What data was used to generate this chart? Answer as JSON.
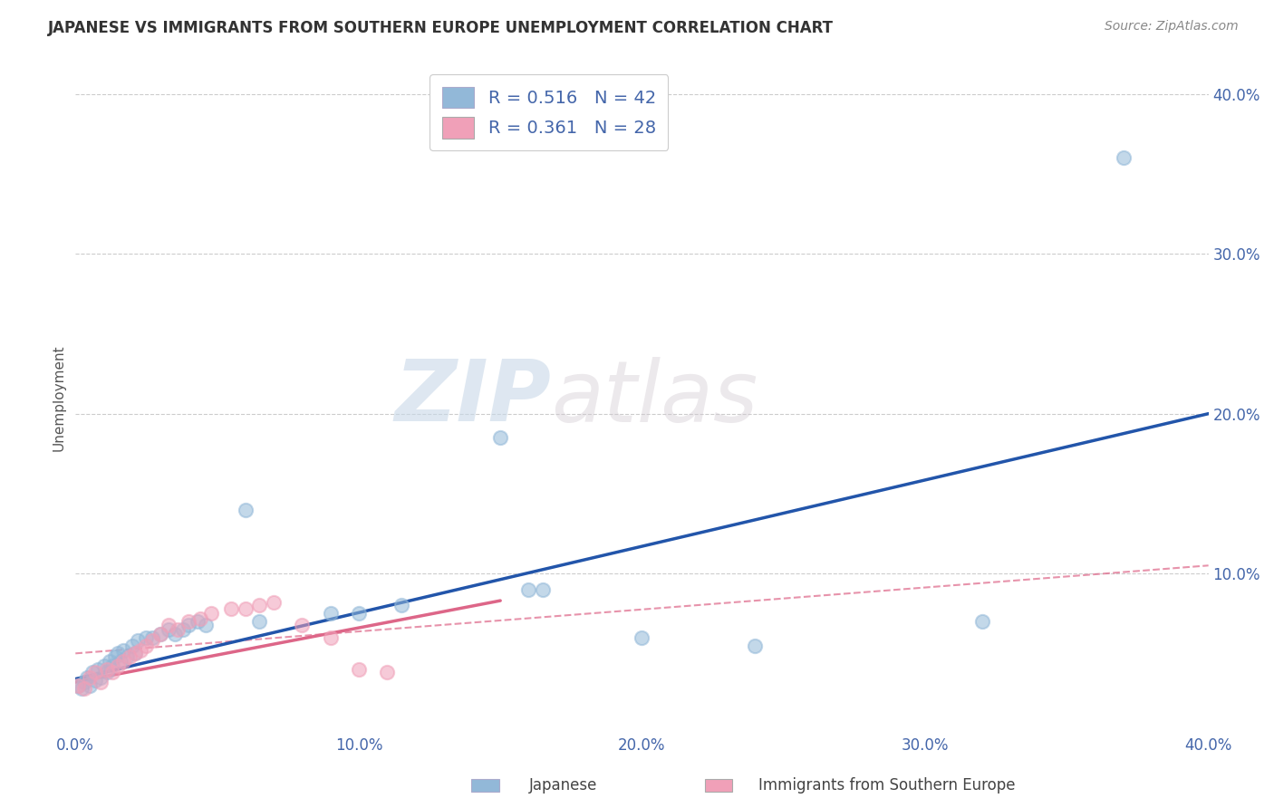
{
  "title": "JAPANESE VS IMMIGRANTS FROM SOUTHERN EUROPE UNEMPLOYMENT CORRELATION CHART",
  "source": "Source: ZipAtlas.com",
  "ylabel": "Unemployment",
  "xlim": [
    0.0,
    0.4
  ],
  "ylim": [
    0.0,
    0.42
  ],
  "xtick_labels": [
    "0.0%",
    "10.0%",
    "20.0%",
    "30.0%",
    "40.0%"
  ],
  "xtick_vals": [
    0.0,
    0.1,
    0.2,
    0.3,
    0.4
  ],
  "ytick_labels": [
    "10.0%",
    "20.0%",
    "30.0%",
    "40.0%"
  ],
  "ytick_vals": [
    0.1,
    0.2,
    0.3,
    0.4
  ],
  "legend_entries": [
    {
      "label": "Japanese",
      "R": "0.516",
      "N": "42"
    },
    {
      "label": "Immigrants from Southern Europe",
      "R": "0.361",
      "N": "28"
    }
  ],
  "japanese_scatter_x": [
    0.001,
    0.002,
    0.003,
    0.004,
    0.005,
    0.006,
    0.007,
    0.008,
    0.009,
    0.01,
    0.011,
    0.012,
    0.013,
    0.014,
    0.015,
    0.016,
    0.017,
    0.018,
    0.02,
    0.021,
    0.022,
    0.025,
    0.027,
    0.03,
    0.033,
    0.035,
    0.038,
    0.04,
    0.043,
    0.046,
    0.06,
    0.065,
    0.09,
    0.1,
    0.115,
    0.15,
    0.16,
    0.165,
    0.2,
    0.24,
    0.32,
    0.37
  ],
  "japanese_scatter_y": [
    0.03,
    0.028,
    0.032,
    0.035,
    0.03,
    0.038,
    0.033,
    0.04,
    0.035,
    0.042,
    0.038,
    0.045,
    0.042,
    0.048,
    0.05,
    0.045,
    0.052,
    0.048,
    0.055,
    0.05,
    0.058,
    0.06,
    0.06,
    0.062,
    0.065,
    0.062,
    0.065,
    0.068,
    0.07,
    0.068,
    0.14,
    0.07,
    0.075,
    0.075,
    0.08,
    0.185,
    0.09,
    0.09,
    0.06,
    0.055,
    0.07,
    0.36
  ],
  "southern_europe_scatter_x": [
    0.001,
    0.003,
    0.005,
    0.007,
    0.009,
    0.011,
    0.013,
    0.015,
    0.017,
    0.019,
    0.021,
    0.023,
    0.025,
    0.027,
    0.03,
    0.033,
    0.036,
    0.04,
    0.044,
    0.048,
    0.055,
    0.06,
    0.065,
    0.07,
    0.08,
    0.09,
    0.1,
    0.11
  ],
  "southern_europe_scatter_y": [
    0.03,
    0.028,
    0.035,
    0.038,
    0.032,
    0.04,
    0.038,
    0.042,
    0.045,
    0.048,
    0.05,
    0.052,
    0.055,
    0.058,
    0.062,
    0.068,
    0.065,
    0.07,
    0.072,
    0.075,
    0.078,
    0.078,
    0.08,
    0.082,
    0.068,
    0.06,
    0.04,
    0.038
  ],
  "japanese_line_x0": 0.0,
  "japanese_line_y0": 0.034,
  "japanese_line_x1": 0.4,
  "japanese_line_y1": 0.2,
  "pink_solid_line_x0": 0.0,
  "pink_solid_line_y0": 0.032,
  "pink_solid_line_x1": 0.15,
  "pink_solid_line_y1": 0.083,
  "pink_dashed_line_x0": 0.0,
  "pink_dashed_line_y0": 0.05,
  "pink_dashed_line_x1": 0.4,
  "pink_dashed_line_y1": 0.105,
  "japanese_line_color": "#2255aa",
  "southern_europe_solid_color": "#dd6688",
  "southern_europe_dashed_color": "#dd6688",
  "scatter_blue": "#92b8d8",
  "scatter_pink": "#f0a0b8",
  "watermark_zip": "ZIP",
  "watermark_atlas": "atlas",
  "background_color": "#ffffff",
  "grid_color": "#cccccc",
  "title_color": "#333333",
  "source_color": "#888888",
  "axis_label_color": "#555555",
  "tick_color": "#4466aa",
  "legend_text_color": "#333333",
  "legend_r_color": "#4466aa"
}
